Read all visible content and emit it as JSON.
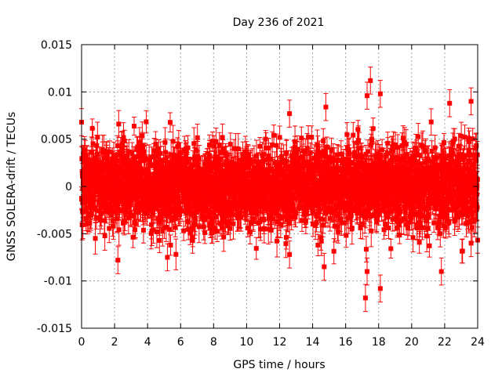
{
  "chart_data": {
    "type": "scatter",
    "title": "Day 236 of 2021",
    "xlabel": "GPS time / hours",
    "ylabel": "GNSS SOLERA-drift / TECUs",
    "xlim": [
      0,
      24
    ],
    "ylim": [
      -0.015,
      0.015
    ],
    "x_ticks": [
      "0",
      "2",
      "4",
      "6",
      "8",
      "10",
      "12",
      "14",
      "16",
      "18",
      "20",
      "22",
      "24"
    ],
    "y_ticks": [
      "-0.015",
      "-0.01",
      "-0.005",
      "0",
      "0.005",
      "0.01",
      "0.015"
    ],
    "grid": true,
    "series_color": "#ff0000",
    "error_bars": true,
    "typical_error": 0.0013,
    "noise_std": 0.0021,
    "n_points": 2880,
    "notable_points": [
      {
        "x": 0.0,
        "y": 0.0068
      },
      {
        "x": 2.2,
        "y": -0.0078
      },
      {
        "x": 2.25,
        "y": 0.0066
      },
      {
        "x": 5.2,
        "y": -0.0075
      },
      {
        "x": 12.6,
        "y": -0.0072
      },
      {
        "x": 12.6,
        "y": 0.0077
      },
      {
        "x": 14.7,
        "y": -0.0085
      },
      {
        "x": 14.8,
        "y": 0.0084
      },
      {
        "x": 17.2,
        "y": -0.0118
      },
      {
        "x": 17.3,
        "y": -0.009
      },
      {
        "x": 17.3,
        "y": 0.0096
      },
      {
        "x": 17.5,
        "y": 0.0112
      },
      {
        "x": 18.1,
        "y": -0.0108
      },
      {
        "x": 18.1,
        "y": 0.0098
      },
      {
        "x": 21.8,
        "y": -0.009
      },
      {
        "x": 22.3,
        "y": 0.0088
      },
      {
        "x": 23.6,
        "y": 0.009
      },
      {
        "x": 23.6,
        "y": -0.006
      }
    ]
  }
}
